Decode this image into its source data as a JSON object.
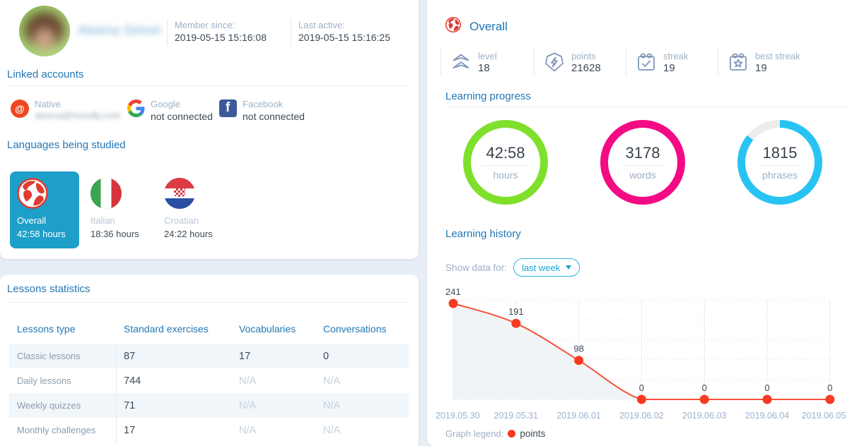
{
  "colors": {
    "accent_blue": "#2277b5",
    "selected_tile_teal": "#1d9fc9",
    "dropdown_teal": "#1aa6d6",
    "green_ring": "#7fe02c",
    "magenta_ring": "#f30b84",
    "cyan_ring": "#29c3f3",
    "chart_line": "#f8503a",
    "chart_point": "#f63b20",
    "legend_dot": "#f93a1e",
    "muted_label": "#9db1c6",
    "dark_text": "#3e4a55"
  },
  "profile": {
    "name_blurred": "Aleena Simon",
    "member_since_label": "Member since:",
    "member_since_value": "2019-05-15 15:16:08",
    "last_active_label": "Last active:",
    "last_active_value": "2019-05-15 15:16:25"
  },
  "linked_accounts": {
    "title": "Linked accounts",
    "native": {
      "label": "Native",
      "value_blurred": "aleena@mondly.com"
    },
    "google": {
      "label": "Google",
      "status": "not connected"
    },
    "facebook": {
      "label": "Facebook",
      "status": "not connected"
    }
  },
  "languages": {
    "title": "Languages being studied",
    "items": [
      {
        "name": "Overall",
        "hours": "42:58 hours",
        "selected": true
      },
      {
        "name": "Italian",
        "hours": "18:36 hours",
        "selected": false
      },
      {
        "name": "Croatian",
        "hours": "24:22 hours",
        "selected": false
      }
    ]
  },
  "lessons": {
    "title": "Lessons statistics",
    "columns": [
      "Lessons type",
      "Standard exercises",
      "Vocabularies",
      "Conversations"
    ],
    "rows": [
      [
        "Classic lessons",
        "87",
        "17",
        "0"
      ],
      [
        "Daily lessons",
        "744",
        "N/A",
        "N/A"
      ],
      [
        "Weekly quizzes",
        "71",
        "N/A",
        "N/A"
      ],
      [
        "Monthly challenges",
        "17",
        "N/A",
        "N/A"
      ]
    ]
  },
  "overview": {
    "title": "Overall",
    "stats": [
      {
        "label": "level",
        "value": "18"
      },
      {
        "label": "points",
        "value": "21628"
      },
      {
        "label": "streak",
        "value": "19"
      },
      {
        "label": "best streak",
        "value": "19"
      }
    ]
  },
  "progress": {
    "title": "Learning progress",
    "rings": [
      {
        "value": "42:58",
        "label": "hours",
        "color": "#7fe02c",
        "percent": 100
      },
      {
        "value": "3178",
        "label": "words",
        "color": "#f30b84",
        "percent": 100
      },
      {
        "value": "1815",
        "label": "phrases",
        "color": "#29c3f3",
        "percent": 86
      }
    ]
  },
  "history": {
    "title": "Learning history",
    "filter_label": "Show data for:",
    "filter_value": "last week",
    "legend_label": "Graph legend:",
    "legend_series": "points"
  },
  "chart_data": {
    "type": "line",
    "x": [
      "2019.05.30",
      "2019.05.31",
      "2019.06.01",
      "2019.06.02",
      "2019.06.03",
      "2019.06.04",
      "2019.06.05"
    ],
    "series": [
      {
        "name": "points",
        "values": [
          241,
          191,
          98,
          0,
          0,
          0,
          0
        ]
      }
    ],
    "ylim": [
      0,
      241
    ],
    "grid": true,
    "area_fill": true,
    "legend_position": "bottom",
    "line_color": "#f8503a",
    "point_color": "#f63b20",
    "area_color": "#eef2f6"
  }
}
